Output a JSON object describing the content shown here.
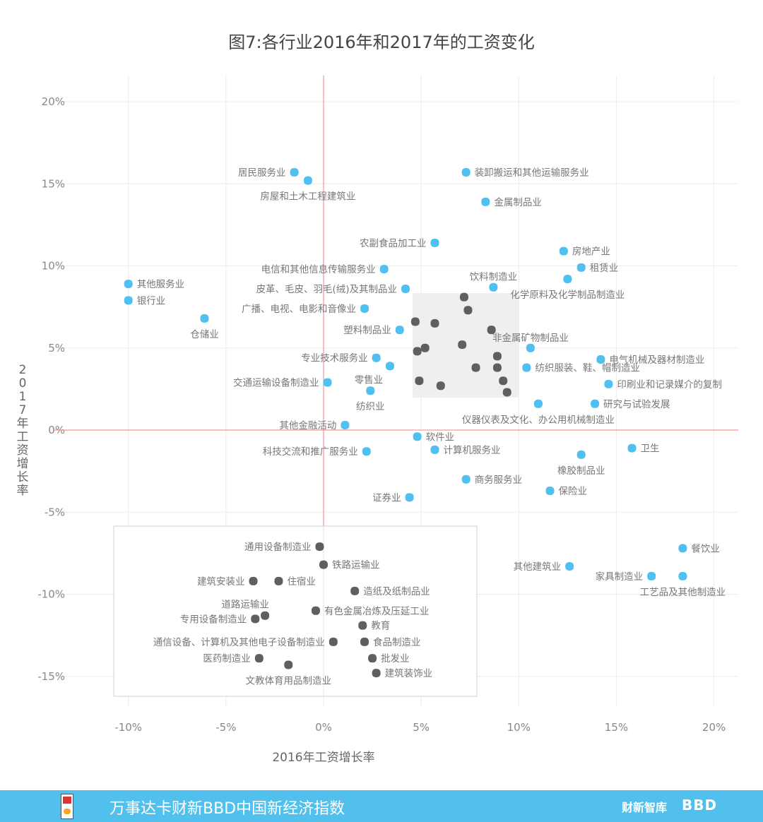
{
  "chart_data": {
    "type": "scatter",
    "title": "图7:各行业2016年和2017年的工资变化",
    "xlabel": "2016年工资增长率",
    "ylabel": "2017年工资增长率",
    "xlim": [
      -10,
      20
    ],
    "ylim": [
      -15,
      20
    ],
    "x_ticks": [
      -10,
      -5,
      0,
      5,
      10,
      15,
      20
    ],
    "y_ticks": [
      -15,
      -10,
      -5,
      0,
      5,
      10,
      15,
      20
    ],
    "tick_format": "percent",
    "grid": true,
    "zero_lines_color": "#f08080",
    "colors": {
      "highlight": "#4fc0ef",
      "grouped": "#5f5f5f",
      "box_fill": "#efefef"
    },
    "series": [
      {
        "group": "highlight",
        "points": [
          {
            "label": "居民服务业",
            "x": -1.5,
            "y": 15.7,
            "label_pos": "left"
          },
          {
            "label": "房屋和土木工程建筑业",
            "x": -0.8,
            "y": 15.2,
            "label_pos": "below"
          },
          {
            "label": "装卸搬运和其他运输服务业",
            "x": 7.3,
            "y": 15.7,
            "label_pos": "right"
          },
          {
            "label": "金属制品业",
            "x": 8.3,
            "y": 13.9,
            "label_pos": "right"
          },
          {
            "label": "农副食品加工业",
            "x": 5.7,
            "y": 11.4,
            "label_pos": "left"
          },
          {
            "label": "房地产业",
            "x": 12.3,
            "y": 10.9,
            "label_pos": "right"
          },
          {
            "label": "租赁业",
            "x": 13.2,
            "y": 9.9,
            "label_pos": "right"
          },
          {
            "label": "化学原料及化学制品制造业",
            "x": 12.5,
            "y": 9.2,
            "label_pos": "below"
          },
          {
            "label": "电信和其他信息传输服务业",
            "x": 3.1,
            "y": 9.8,
            "label_pos": "left"
          },
          {
            "label": "饮料制造业",
            "x": 8.7,
            "y": 8.7,
            "label_pos": "above"
          },
          {
            "label": "皮革、毛皮、羽毛(绒)及其制品业",
            "x": 4.2,
            "y": 8.6,
            "label_pos": "left"
          },
          {
            "label": "其他服务业",
            "x": -10.0,
            "y": 8.9,
            "label_pos": "right"
          },
          {
            "label": "银行业",
            "x": -10.0,
            "y": 7.9,
            "label_pos": "right"
          },
          {
            "label": "仓储业",
            "x": -6.1,
            "y": 6.8,
            "label_pos": "below"
          },
          {
            "label": "广播、电视、电影和音像业",
            "x": 2.1,
            "y": 7.4,
            "label_pos": "left"
          },
          {
            "label": "塑料制品业",
            "x": 3.9,
            "y": 6.1,
            "label_pos": "left"
          },
          {
            "label": "非金属矿物制品业",
            "x": 10.6,
            "y": 5.0,
            "label_pos": "above"
          },
          {
            "label": "电气机械及器材制造业",
            "x": 14.2,
            "y": 4.3,
            "label_pos": "right"
          },
          {
            "label": "专业技术服务业",
            "x": 2.7,
            "y": 4.4,
            "label_pos": "left"
          },
          {
            "label": "零售业",
            "x": 3.4,
            "y": 3.9,
            "label_pos": "below-left"
          },
          {
            "label": "纺织服装、鞋、帽制造业",
            "x": 10.4,
            "y": 3.8,
            "label_pos": "right"
          },
          {
            "label": "印刷业和记录媒介的复制",
            "x": 14.6,
            "y": 2.8,
            "label_pos": "right"
          },
          {
            "label": "交通运输设备制造业",
            "x": 0.2,
            "y": 2.9,
            "label_pos": "left"
          },
          {
            "label": "纺织业",
            "x": 2.4,
            "y": 2.4,
            "label_pos": "below"
          },
          {
            "label": "研究与试验发展",
            "x": 13.9,
            "y": 1.6,
            "label_pos": "right"
          },
          {
            "label": "仪器仪表及文化、办公用机械制造业",
            "x": 11.0,
            "y": 1.6,
            "label_pos": "below"
          },
          {
            "label": "其他金融活动",
            "x": 1.1,
            "y": 0.3,
            "label_pos": "left"
          },
          {
            "label": "软件业",
            "x": 4.8,
            "y": -0.4,
            "label_pos": "right"
          },
          {
            "label": "计算机服务业",
            "x": 5.7,
            "y": -1.2,
            "label_pos": "right"
          },
          {
            "label": "卫生",
            "x": 15.8,
            "y": -1.1,
            "label_pos": "right"
          },
          {
            "label": "橡胶制品业",
            "x": 13.2,
            "y": -1.5,
            "label_pos": "below"
          },
          {
            "label": "科技交流和推广服务业",
            "x": 2.2,
            "y": -1.3,
            "label_pos": "left"
          },
          {
            "label": "商务服务业",
            "x": 7.3,
            "y": -3.0,
            "label_pos": "right"
          },
          {
            "label": "保险业",
            "x": 11.6,
            "y": -3.7,
            "label_pos": "right"
          },
          {
            "label": "证券业",
            "x": 4.4,
            "y": -4.1,
            "label_pos": "left"
          },
          {
            "label": "餐饮业",
            "x": 18.4,
            "y": -7.2,
            "label_pos": "right"
          },
          {
            "label": "其他建筑业",
            "x": 12.6,
            "y": -8.3,
            "label_pos": "left"
          },
          {
            "label": "家具制造业",
            "x": 16.8,
            "y": -8.9,
            "label_pos": "left"
          },
          {
            "label": "工艺品及其他制造业",
            "x": 18.4,
            "y": -8.9,
            "label_pos": "below"
          }
        ]
      },
      {
        "group": "cluster-unlabeled",
        "points": [
          {
            "x": 7.2,
            "y": 8.1
          },
          {
            "x": 7.4,
            "y": 7.3
          },
          {
            "x": 4.7,
            "y": 6.6
          },
          {
            "x": 5.7,
            "y": 6.5
          },
          {
            "x": 8.6,
            "y": 6.1
          },
          {
            "x": 7.1,
            "y": 5.2
          },
          {
            "x": 4.8,
            "y": 4.8
          },
          {
            "x": 5.2,
            "y": 5.0
          },
          {
            "x": 8.9,
            "y": 4.5
          },
          {
            "x": 7.8,
            "y": 3.8
          },
          {
            "x": 8.9,
            "y": 3.8
          },
          {
            "x": 4.9,
            "y": 3.0
          },
          {
            "x": 6.0,
            "y": 2.7
          },
          {
            "x": 9.2,
            "y": 3.0
          },
          {
            "x": 9.4,
            "y": 2.3
          }
        ]
      },
      {
        "group": "inset-labeled",
        "points": [
          {
            "label": "通用设备制造业",
            "x": -0.2,
            "y": -7.1,
            "label_pos": "left"
          },
          {
            "label": "铁路运输业",
            "x": 0.0,
            "y": -8.2,
            "label_pos": "right"
          },
          {
            "label": "建筑安装业",
            "x": -3.6,
            "y": -9.2,
            "label_pos": "left"
          },
          {
            "label": "住宿业",
            "x": -2.3,
            "y": -9.2,
            "label_pos": "right"
          },
          {
            "label": "造纸及纸制品业",
            "x": 1.6,
            "y": -9.8,
            "label_pos": "right"
          },
          {
            "label": "道路运输业",
            "x": -3.0,
            "y": -11.3,
            "label_pos": "above-left"
          },
          {
            "label": "专用设备制造业",
            "x": -3.5,
            "y": -11.5,
            "label_pos": "left"
          },
          {
            "label": "有色金属冶炼及压延工业",
            "x": -0.4,
            "y": -11.0,
            "label_pos": "right"
          },
          {
            "label": "教育",
            "x": 2.0,
            "y": -11.9,
            "label_pos": "right"
          },
          {
            "label": "通信设备、计算机及其他电子设备制造业",
            "x": 0.5,
            "y": -12.9,
            "label_pos": "left"
          },
          {
            "label": "食品制造业",
            "x": 2.1,
            "y": -12.9,
            "label_pos": "right"
          },
          {
            "label": "医药制造业",
            "x": -3.3,
            "y": -13.9,
            "label_pos": "left"
          },
          {
            "label": "文教体育用品制造业",
            "x": -1.8,
            "y": -14.3,
            "label_pos": "below"
          },
          {
            "label": "批发业",
            "x": 2.5,
            "y": -13.9,
            "label_pos": "right"
          },
          {
            "label": "建筑装饰业",
            "x": 2.7,
            "y": -14.8,
            "label_pos": "right"
          }
        ]
      }
    ]
  },
  "footer": {
    "title": "万事达卡财新BBD中国新经济指数",
    "logo_left": "NEI",
    "logo_caixin": "财新智库",
    "logo_bbd": "BBD",
    "color": "#52c0ec"
  }
}
